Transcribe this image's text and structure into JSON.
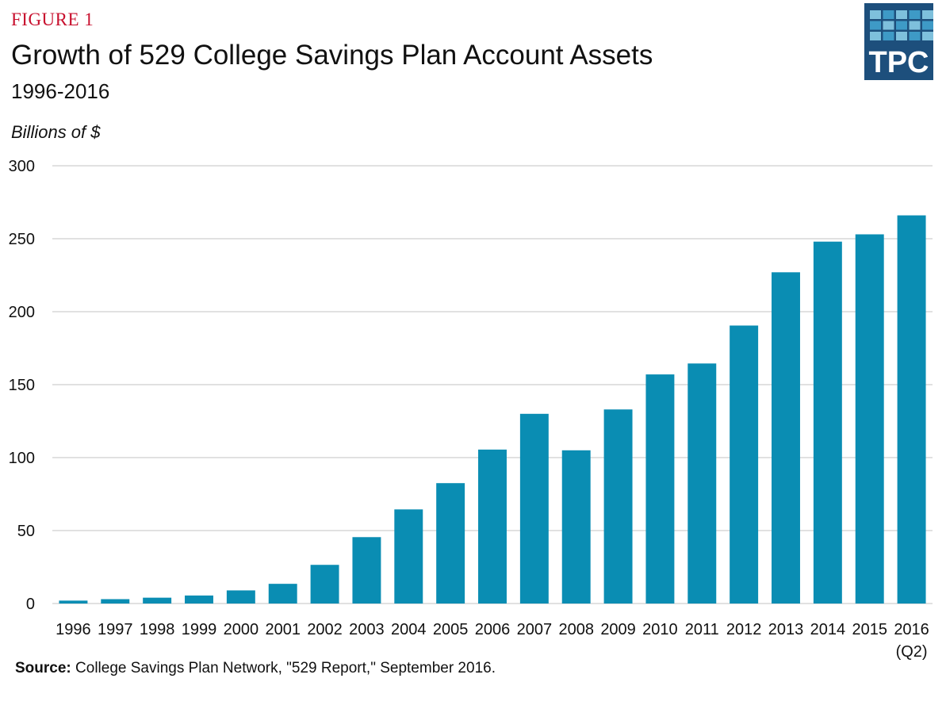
{
  "figure_label": "FIGURE 1",
  "title": "Growth of 529 College Savings Plan Account Assets",
  "subtitle": "1996-2016",
  "logo_text": "TPC",
  "source": {
    "label": "Source:",
    "text": " College Savings Plan Network, \"529 Report,\" September 2016."
  },
  "colors": {
    "figure_label": "#c8102e",
    "bar": "#0a8db3",
    "grid": "#cfcfcf",
    "logo_bg": "#1d4f7c",
    "logo_tile_light": "#7ec0dc",
    "logo_tile_dark": "#3e9ac6"
  },
  "chart_data": {
    "type": "bar",
    "ylabel": "Billions of $",
    "xlabel": "",
    "ylim": [
      0,
      300
    ],
    "yticks": [
      0,
      50,
      100,
      150,
      200,
      250,
      300
    ],
    "grid": true,
    "categories": [
      "1996",
      "1997",
      "1998",
      "1999",
      "2000",
      "2001",
      "2002",
      "2003",
      "2004",
      "2005",
      "2006",
      "2007",
      "2008",
      "2009",
      "2010",
      "2011",
      "2012",
      "2013",
      "2014",
      "2015",
      "2016\n(Q2)"
    ],
    "values": [
      2,
      3,
      4,
      5.5,
      9,
      13.5,
      26.5,
      45.5,
      64.5,
      82.5,
      105.5,
      130,
      105,
      133,
      157,
      164.5,
      190.5,
      227,
      248,
      253,
      266
    ]
  }
}
